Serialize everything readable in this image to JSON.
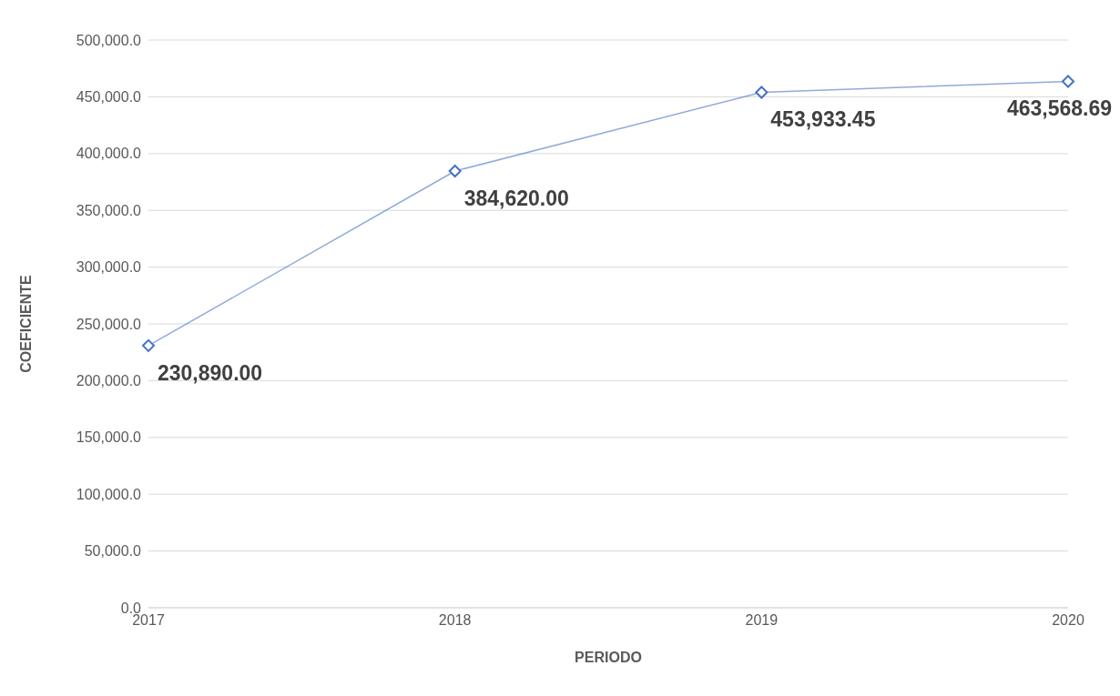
{
  "chart_data": {
    "type": "line",
    "xlabel": "PERIODO",
    "ylabel": "COEFICIENTE",
    "categories": [
      "2017",
      "2018",
      "2019",
      "2020"
    ],
    "series": [
      {
        "color": "#4472c4",
        "values": [
          230890,
          384620,
          453933.45,
          463568.69
        ],
        "value_labels": [
          "230,890.00",
          "384,620.00",
          "453,933.45",
          "463,568.69"
        ]
      }
    ],
    "ylim": [
      0,
      500000
    ],
    "yticks": [
      {
        "value": 0,
        "label": "0.0"
      },
      {
        "value": 50000,
        "label": "50,000.0"
      },
      {
        "value": 100000,
        "label": "100,000.0"
      },
      {
        "value": 150000,
        "label": "150,000.0"
      },
      {
        "value": 200000,
        "label": "200,000.0"
      },
      {
        "value": 250000,
        "label": "250,000.0"
      },
      {
        "value": 300000,
        "label": "300,000.0"
      },
      {
        "value": 350000,
        "label": "350,000.0"
      },
      {
        "value": 400000,
        "label": "400,000.0"
      },
      {
        "value": 450000,
        "label": "450,000.0"
      },
      {
        "value": 500000,
        "label": "500,000.0"
      }
    ],
    "grid": "y",
    "marker": "diamond",
    "line_style": "solid"
  }
}
